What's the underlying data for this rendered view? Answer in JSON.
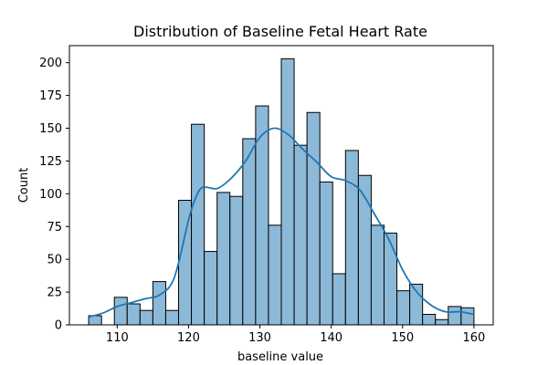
{
  "chart_data": {
    "type": "bar",
    "title": "Distribution of Baseline Fetal Heart Rate",
    "xlabel": "baseline value",
    "ylabel": "Count",
    "xlim": [
      103.3,
      162.7
    ],
    "ylim": [
      0,
      213
    ],
    "x_ticks": [
      110,
      120,
      130,
      140,
      150,
      160
    ],
    "y_ticks": [
      0,
      25,
      50,
      75,
      100,
      125,
      150,
      175,
      200
    ],
    "grid": false,
    "legend": "none",
    "bins": {
      "start": 106,
      "width": 1.8,
      "counts": [
        7,
        0,
        21,
        16,
        11,
        33,
        11,
        95,
        153,
        56,
        101,
        98,
        142,
        167,
        76,
        203,
        137,
        162,
        109,
        39,
        133,
        114,
        76,
        70,
        26,
        31,
        8,
        4,
        14,
        13
      ]
    },
    "kde": {
      "x": [
        106,
        108,
        110,
        112,
        114,
        116,
        118,
        120,
        121,
        122,
        124,
        126,
        128,
        130,
        132,
        134,
        136,
        138,
        140,
        142,
        144,
        146,
        148,
        150,
        152,
        154,
        156,
        158,
        160
      ],
      "y": [
        6,
        9,
        14,
        17,
        20,
        23,
        36,
        80,
        97,
        105,
        104,
        112,
        125,
        143,
        150,
        145,
        134,
        124,
        113,
        110,
        103,
        85,
        66,
        42,
        25,
        15,
        10,
        10,
        8
      ]
    },
    "colors": {
      "bar_fill": "#8db9d8",
      "bar_edge": "#000000",
      "kde_line": "#1f77b4"
    }
  }
}
